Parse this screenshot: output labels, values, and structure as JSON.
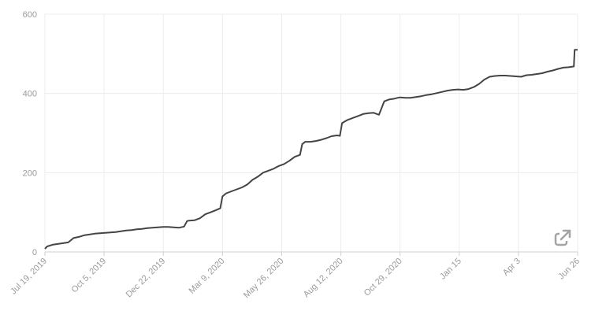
{
  "chart_data": {
    "type": "line",
    "title": "",
    "xlabel": "",
    "ylabel": "",
    "ylim": [
      0,
      600
    ],
    "y_ticks": [
      0,
      200,
      400,
      600
    ],
    "x_tick_labels": [
      "Jul 19, 2019",
      "Oct 5, 2019",
      "Dec 22, 2019",
      "Mar 9, 2020",
      "May 26, 2020",
      "Aug 12, 2020",
      "Oct 29, 2020",
      "Jan 15",
      "Apr 3",
      "Jun 26"
    ],
    "grid": true,
    "series": [
      {
        "color": "#444444",
        "x": [
          "2019-07-19",
          "2019-07-22",
          "2019-07-29",
          "2019-08-05",
          "2019-08-12",
          "2019-08-19",
          "2019-08-26",
          "2019-09-02",
          "2019-09-09",
          "2019-09-16",
          "2019-09-23",
          "2019-09-30",
          "2019-10-07",
          "2019-10-14",
          "2019-10-21",
          "2019-10-28",
          "2019-11-04",
          "2019-11-11",
          "2019-11-18",
          "2019-11-25",
          "2019-12-02",
          "2019-12-09",
          "2019-12-16",
          "2019-12-23",
          "2019-12-30",
          "2020-01-06",
          "2020-01-13",
          "2020-01-20",
          "2020-01-24",
          "2020-01-27",
          "2020-02-03",
          "2020-02-10",
          "2020-02-17",
          "2020-02-24",
          "2020-03-02",
          "2020-03-08",
          "2020-03-11",
          "2020-03-16",
          "2020-03-23",
          "2020-03-30",
          "2020-04-06",
          "2020-04-13",
          "2020-04-20",
          "2020-04-27",
          "2020-05-04",
          "2020-05-11",
          "2020-05-18",
          "2020-05-25",
          "2020-06-01",
          "2020-06-08",
          "2020-06-15",
          "2020-06-22",
          "2020-06-25",
          "2020-06-29",
          "2020-07-06",
          "2020-07-13",
          "2020-07-20",
          "2020-07-27",
          "2020-08-03",
          "2020-08-10",
          "2020-08-14",
          "2020-08-17",
          "2020-08-24",
          "2020-08-31",
          "2020-09-07",
          "2020-09-14",
          "2020-09-21",
          "2020-09-28",
          "2020-10-05",
          "2020-10-12",
          "2020-10-19",
          "2020-10-26",
          "2020-10-30",
          "2020-11-02",
          "2020-11-09",
          "2020-11-16",
          "2020-11-23",
          "2020-11-30",
          "2020-12-07",
          "2020-12-14",
          "2020-12-21",
          "2020-12-28",
          "2021-01-04",
          "2021-01-11",
          "2021-01-18",
          "2021-01-25",
          "2021-02-01",
          "2021-02-08",
          "2021-02-15",
          "2021-02-22",
          "2021-03-01",
          "2021-03-08",
          "2021-03-15",
          "2021-03-22",
          "2021-03-29",
          "2021-04-05",
          "2021-04-12",
          "2021-04-19",
          "2021-04-26",
          "2021-05-03",
          "2021-05-10",
          "2021-05-17",
          "2021-05-24",
          "2021-05-31",
          "2021-06-07",
          "2021-06-14",
          "2021-06-21",
          "2021-06-22",
          "2021-06-26"
        ],
        "y": [
          8,
          14,
          18,
          20,
          22,
          24,
          35,
          38,
          42,
          44,
          46,
          47,
          48,
          49,
          50,
          52,
          54,
          55,
          57,
          58,
          60,
          61,
          62,
          63,
          63,
          62,
          61,
          64,
          78,
          79,
          80,
          85,
          95,
          100,
          105,
          110,
          140,
          148,
          153,
          158,
          163,
          170,
          182,
          190,
          200,
          205,
          210,
          217,
          222,
          230,
          240,
          245,
          272,
          278,
          278,
          280,
          283,
          287,
          292,
          294,
          293,
          325,
          333,
          338,
          343,
          348,
          350,
          351,
          346,
          380,
          385,
          387,
          389,
          390,
          389,
          389,
          391,
          393,
          396,
          398,
          401,
          404,
          407,
          409,
          410,
          409,
          411,
          416,
          424,
          435,
          442,
          444,
          445,
          445,
          444,
          443,
          442,
          446,
          447,
          449,
          451,
          455,
          458,
          462,
          465,
          466,
          468,
          510,
          510
        ]
      }
    ]
  },
  "icons": {
    "expand": "expand-icon"
  }
}
